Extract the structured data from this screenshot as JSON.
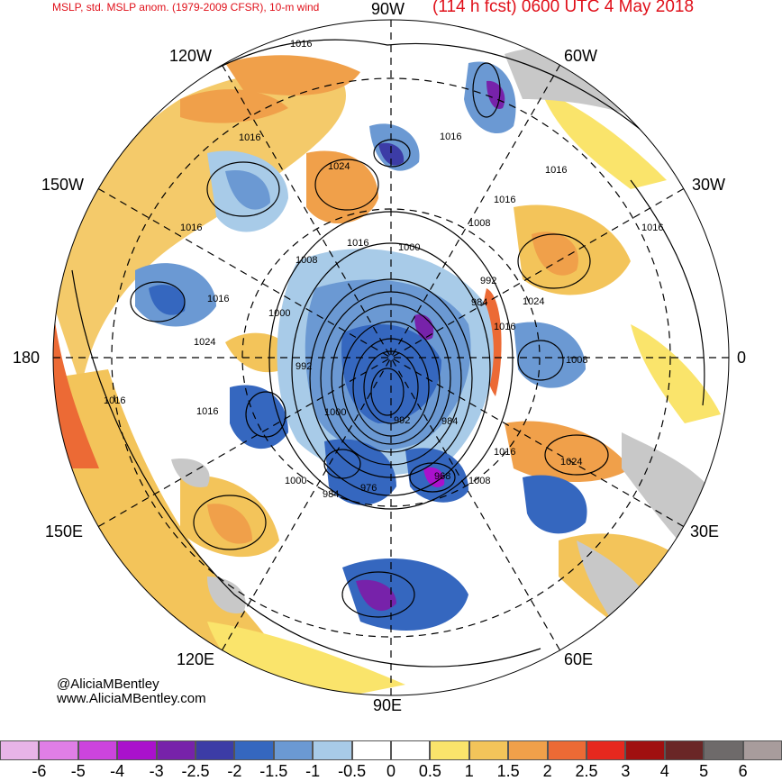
{
  "title": {
    "left": "MSLP, std. MSLP anom. (1979-2009 CFSR), 10-m wind",
    "right": "(114 h fcst) 0600 UTC 4 May 2018"
  },
  "longitude_labels": {
    "lon_90w": "90W",
    "lon_60w": "60W",
    "lon_30w": "30W",
    "lon_0": "0",
    "lon_30e": "30E",
    "lon_60e": "60E",
    "lon_90e": "90E",
    "lon_120e": "120E",
    "lon_150e": "150E",
    "lon_180": "180",
    "lon_150w": "150W",
    "lon_120w": "120W"
  },
  "credit": {
    "handle": "@AliciaMBentley",
    "website": "www.AliciaMBentley.com"
  },
  "contour_labels": [
    "1016",
    "1016",
    "1016",
    "1016",
    "1016",
    "1016",
    "1016",
    "1016",
    "1016",
    "1016",
    "1016",
    "1016",
    "1016",
    "1024",
    "1024",
    "1024",
    "1024",
    "1008",
    "1008",
    "1008",
    "1008",
    "1000",
    "1000",
    "1000",
    "1000",
    "992",
    "992",
    "992",
    "984",
    "984",
    "984",
    "976",
    "968"
  ],
  "colorbar": {
    "ticks": [
      "-6",
      "-5",
      "-4",
      "-3",
      "-2.5",
      "-2",
      "-1.5",
      "-1",
      "-0.5",
      "0",
      "0.5",
      "1",
      "1.5",
      "2",
      "2.5",
      "3",
      "4",
      "5",
      "6"
    ],
    "colors": [
      "#e8b4e8",
      "#e07ee6",
      "#cc44dd",
      "#aa11cc",
      "#7722aa",
      "#3c3ca6",
      "#3567bf",
      "#6b99d3",
      "#a8cbe8",
      "#ffffff",
      "#ffffff",
      "#fae46b",
      "#f3c45a",
      "#f0a04a",
      "#ec6a35",
      "#e6281e",
      "#a01010",
      "#6a2626",
      "#6e6a6a",
      "#a89c9c"
    ]
  },
  "colors": {
    "title": "#e0101a",
    "land": "#c8c8c8",
    "contour": "#000000"
  }
}
